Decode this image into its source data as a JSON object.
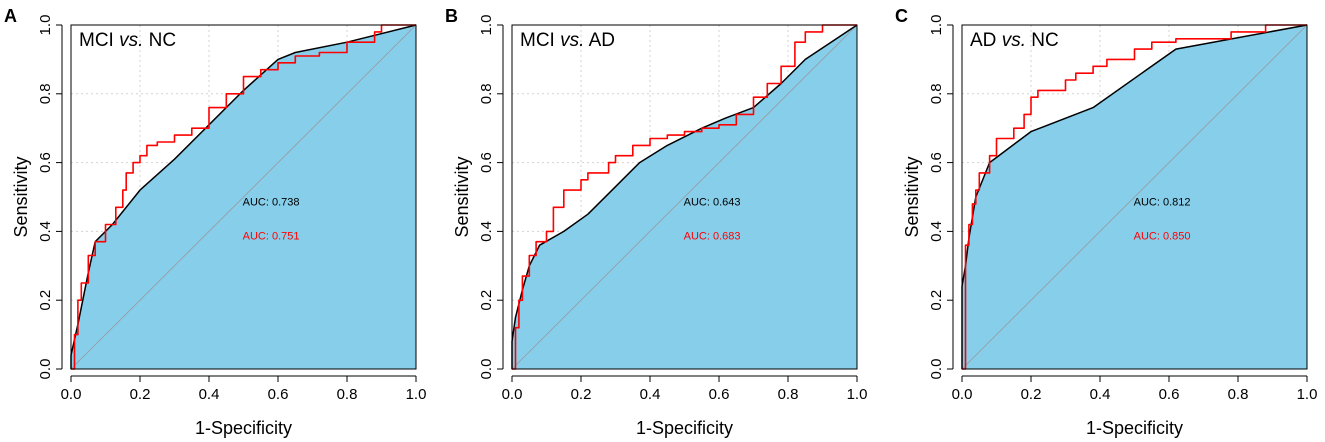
{
  "chart_data": [
    {
      "type": "line",
      "panel": "A",
      "title": {
        "a": "MCI",
        "vs": "vs.",
        "b": "NC"
      },
      "xlabel": "1-Specificity",
      "ylabel": "Sensitivity",
      "xlim": [
        0,
        1
      ],
      "ylim": [
        0,
        1
      ],
      "ticks": [
        "0.0",
        "0.2",
        "0.4",
        "0.6",
        "0.8",
        "1.0"
      ],
      "tick_values": [
        0,
        0.2,
        0.4,
        0.6,
        0.8,
        1.0
      ],
      "grid": true,
      "series": [
        {
          "name": "model1",
          "color": "#000000",
          "fill": "#87ceeb",
          "x": [
            0,
            0,
            0.02,
            0.05,
            0.07,
            0.12,
            0.2,
            0.3,
            0.4,
            0.5,
            0.6,
            0.65,
            0.8,
            1.0
          ],
          "y": [
            0,
            0.04,
            0.13,
            0.28,
            0.37,
            0.42,
            0.52,
            0.61,
            0.71,
            0.81,
            0.9,
            0.92,
            0.95,
            1.0
          ]
        },
        {
          "name": "model2",
          "color": "#ff0000",
          "x": [
            0,
            0.01,
            0.01,
            0.02,
            0.02,
            0.03,
            0.03,
            0.05,
            0.05,
            0.07,
            0.07,
            0.1,
            0.1,
            0.13,
            0.13,
            0.15,
            0.15,
            0.16,
            0.16,
            0.18,
            0.18,
            0.2,
            0.2,
            0.22,
            0.22,
            0.25,
            0.25,
            0.3,
            0.3,
            0.35,
            0.35,
            0.4,
            0.4,
            0.45,
            0.45,
            0.5,
            0.5,
            0.55,
            0.55,
            0.6,
            0.6,
            0.65,
            0.65,
            0.72,
            0.72,
            0.8,
            0.8,
            0.88,
            0.88,
            0.9,
            0.9,
            1.0
          ],
          "y": [
            0,
            0,
            0.1,
            0.1,
            0.2,
            0.2,
            0.25,
            0.25,
            0.33,
            0.33,
            0.37,
            0.37,
            0.42,
            0.42,
            0.47,
            0.47,
            0.52,
            0.52,
            0.57,
            0.57,
            0.6,
            0.6,
            0.62,
            0.62,
            0.65,
            0.65,
            0.66,
            0.66,
            0.68,
            0.68,
            0.7,
            0.7,
            0.76,
            0.76,
            0.8,
            0.8,
            0.85,
            0.85,
            0.87,
            0.87,
            0.89,
            0.89,
            0.91,
            0.91,
            0.92,
            0.92,
            0.95,
            0.95,
            0.98,
            0.98,
            1.0,
            1.0
          ]
        }
      ],
      "auc": [
        {
          "label": "AUC: 0.738",
          "color": "#000000"
        },
        {
          "label": "AUC: 0.751",
          "color": "#ff0000"
        }
      ]
    },
    {
      "type": "line",
      "panel": "B",
      "title": {
        "a": "MCI",
        "vs": "vs.",
        "b": "AD"
      },
      "xlabel": "1-Specificity",
      "ylabel": "Sensitivity",
      "xlim": [
        0,
        1
      ],
      "ylim": [
        0,
        1
      ],
      "ticks": [
        "0.0",
        "0.2",
        "0.4",
        "0.6",
        "0.8",
        "1.0"
      ],
      "tick_values": [
        0,
        0.2,
        0.4,
        0.6,
        0.8,
        1.0
      ],
      "grid": true,
      "series": [
        {
          "name": "model1",
          "color": "#000000",
          "fill": "#87ceeb",
          "x": [
            0,
            0,
            0.01,
            0.03,
            0.05,
            0.08,
            0.15,
            0.22,
            0.3,
            0.37,
            0.45,
            0.55,
            0.62,
            0.7,
            0.78,
            0.85,
            1.0
          ],
          "y": [
            0,
            0.08,
            0.15,
            0.23,
            0.3,
            0.36,
            0.4,
            0.45,
            0.53,
            0.6,
            0.65,
            0.7,
            0.73,
            0.76,
            0.83,
            0.9,
            1.0
          ]
        },
        {
          "name": "model2",
          "color": "#ff0000",
          "x": [
            0,
            0.01,
            0.01,
            0.02,
            0.02,
            0.03,
            0.03,
            0.05,
            0.05,
            0.07,
            0.07,
            0.1,
            0.1,
            0.12,
            0.12,
            0.15,
            0.15,
            0.2,
            0.2,
            0.22,
            0.22,
            0.28,
            0.28,
            0.3,
            0.3,
            0.35,
            0.35,
            0.4,
            0.4,
            0.45,
            0.45,
            0.5,
            0.5,
            0.55,
            0.55,
            0.6,
            0.6,
            0.65,
            0.65,
            0.7,
            0.7,
            0.74,
            0.74,
            0.78,
            0.78,
            0.82,
            0.82,
            0.85,
            0.85,
            0.9,
            0.9,
            1.0
          ],
          "y": [
            0,
            0,
            0.12,
            0.12,
            0.2,
            0.2,
            0.27,
            0.27,
            0.33,
            0.33,
            0.37,
            0.37,
            0.4,
            0.4,
            0.47,
            0.47,
            0.52,
            0.52,
            0.55,
            0.55,
            0.57,
            0.57,
            0.6,
            0.6,
            0.62,
            0.62,
            0.65,
            0.65,
            0.67,
            0.67,
            0.68,
            0.68,
            0.69,
            0.69,
            0.7,
            0.7,
            0.71,
            0.71,
            0.74,
            0.74,
            0.79,
            0.79,
            0.83,
            0.83,
            0.88,
            0.88,
            0.95,
            0.95,
            0.98,
            0.98,
            1.0,
            1.0
          ]
        }
      ],
      "auc": [
        {
          "label": "AUC: 0.643",
          "color": "#000000"
        },
        {
          "label": "AUC: 0.683",
          "color": "#ff0000"
        }
      ]
    },
    {
      "type": "line",
      "panel": "C",
      "title": {
        "a": "AD",
        "vs": "vs.",
        "b": "NC"
      },
      "xlabel": "1-Specificity",
      "ylabel": "Sensitivity",
      "xlim": [
        0,
        1
      ],
      "ylim": [
        0,
        1
      ],
      "ticks": [
        "0.0",
        "0.2",
        "0.4",
        "0.6",
        "0.8",
        "1.0"
      ],
      "tick_values": [
        0,
        0.2,
        0.4,
        0.6,
        0.8,
        1.0
      ],
      "grid": true,
      "series": [
        {
          "name": "model1",
          "color": "#000000",
          "fill": "#87ceeb",
          "x": [
            0,
            0,
            0.01,
            0.02,
            0.04,
            0.08,
            0.2,
            0.38,
            0.62,
            1.0
          ],
          "y": [
            0,
            0.24,
            0.3,
            0.38,
            0.5,
            0.6,
            0.69,
            0.76,
            0.93,
            1.0
          ]
        },
        {
          "name": "model2",
          "color": "#ff0000",
          "x": [
            0,
            0.01,
            0.01,
            0.02,
            0.02,
            0.03,
            0.03,
            0.04,
            0.04,
            0.05,
            0.05,
            0.08,
            0.08,
            0.1,
            0.1,
            0.15,
            0.15,
            0.18,
            0.18,
            0.2,
            0.2,
            0.22,
            0.22,
            0.3,
            0.3,
            0.33,
            0.33,
            0.38,
            0.38,
            0.42,
            0.42,
            0.5,
            0.5,
            0.55,
            0.55,
            0.62,
            0.62,
            0.78,
            0.78,
            0.88,
            0.88,
            1.0
          ],
          "y": [
            0,
            0,
            0.36,
            0.36,
            0.42,
            0.42,
            0.48,
            0.48,
            0.52,
            0.52,
            0.57,
            0.57,
            0.62,
            0.62,
            0.67,
            0.67,
            0.7,
            0.7,
            0.74,
            0.74,
            0.79,
            0.79,
            0.81,
            0.81,
            0.84,
            0.84,
            0.86,
            0.86,
            0.88,
            0.88,
            0.9,
            0.9,
            0.93,
            0.93,
            0.95,
            0.95,
            0.96,
            0.96,
            0.98,
            0.98,
            1.0,
            1.0
          ]
        }
      ],
      "auc": [
        {
          "label": "AUC: 0.812",
          "color": "#000000"
        },
        {
          "label": "AUC: 0.850",
          "color": "#ff0000"
        }
      ]
    }
  ]
}
